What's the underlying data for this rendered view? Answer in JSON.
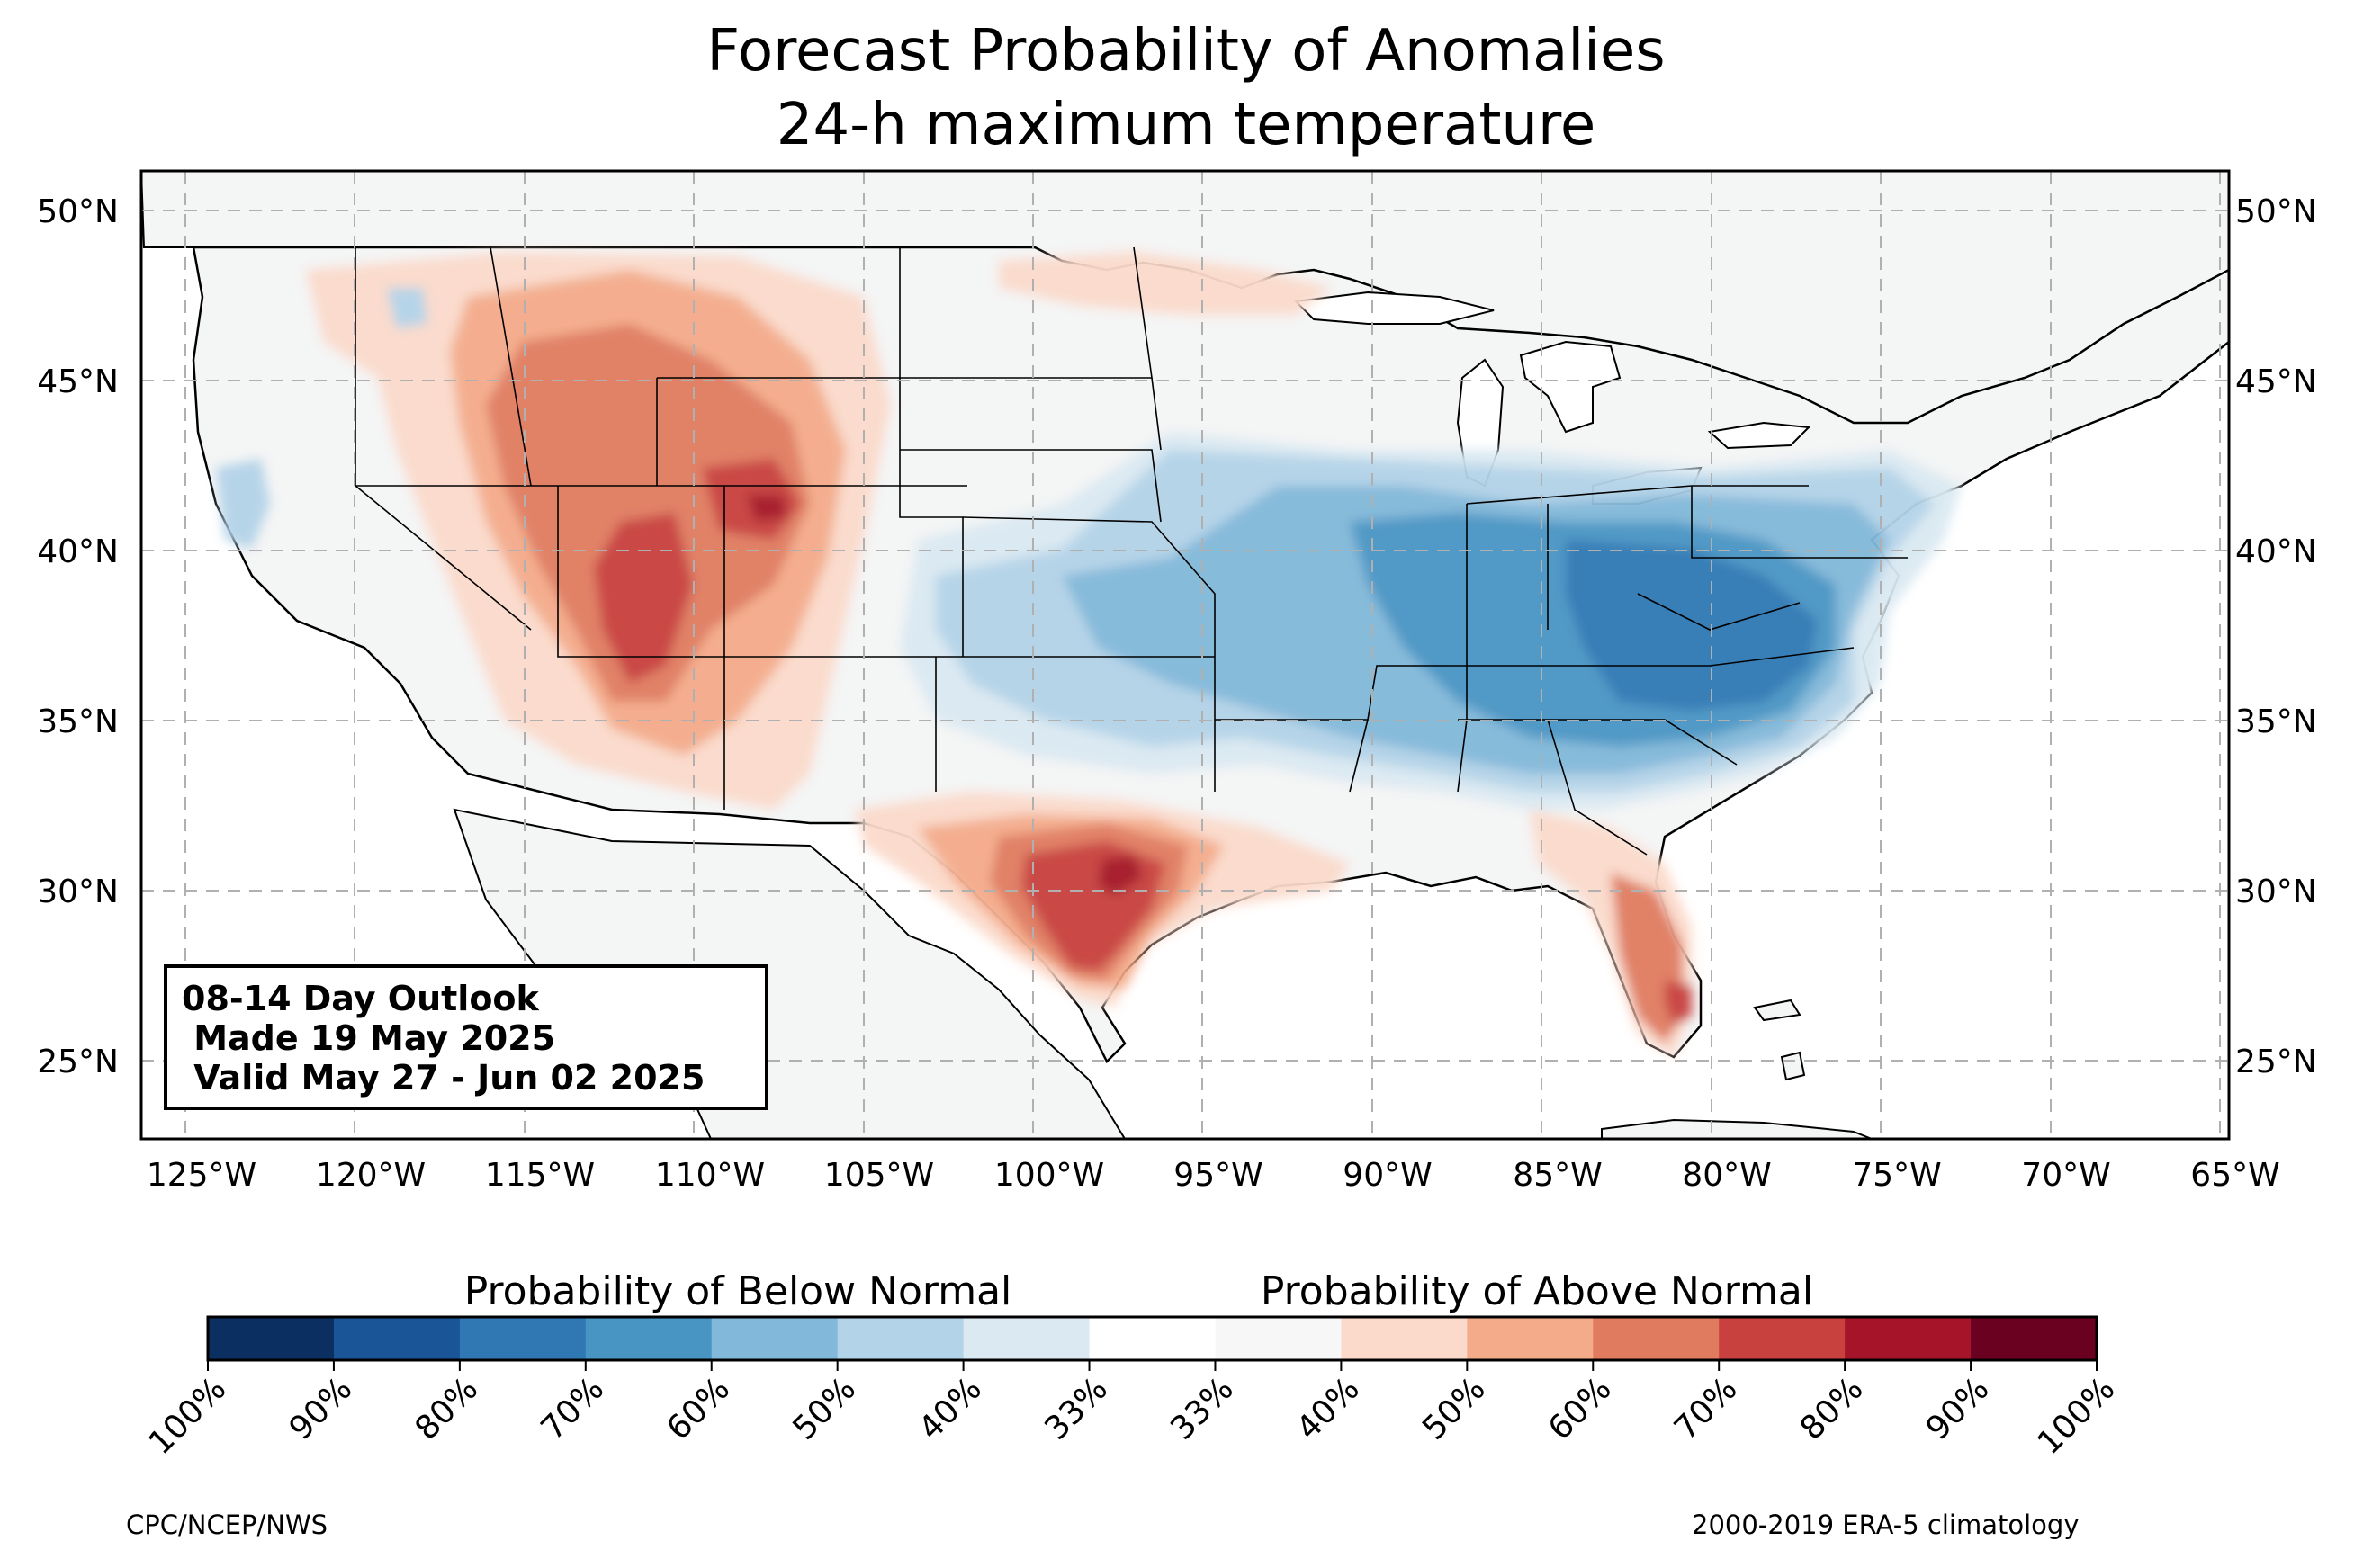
{
  "title": {
    "line1": "Forecast Probability of Anomalies",
    "line2": "24-h maximum temperature"
  },
  "map": {
    "region": "Contiguous United States",
    "lon_ticks": [
      "125°W",
      "120°W",
      "115°W",
      "110°W",
      "105°W",
      "100°W",
      "95°W",
      "90°W",
      "85°W",
      "80°W",
      "75°W",
      "70°W",
      "65°W"
    ],
    "lat_ticks": [
      "50°N",
      "45°N",
      "40°N",
      "35°N",
      "30°N",
      "25°N"
    ],
    "gridlines": true,
    "land_color": "#f4f5f5",
    "water_color": "#ffffff",
    "anomalies": [
      {
        "category": "above",
        "probability_percent": 50,
        "area": "Great Basin, Idaho, Montana and Wyoming"
      },
      {
        "category": "above",
        "probability_percent": 60,
        "area": "Utah, Colorado and Wyoming"
      },
      {
        "category": "above",
        "probability_percent": 70,
        "area": "South-central Wyoming"
      },
      {
        "category": "above",
        "probability_percent": 40,
        "area": "Northern Plains and Upper Midwest border"
      },
      {
        "category": "above",
        "probability_percent": 70,
        "area": "South and central Texas"
      },
      {
        "category": "above",
        "probability_percent": 80,
        "area": "Central Texas"
      },
      {
        "category": "above",
        "probability_percent": 70,
        "area": "South Florida"
      },
      {
        "category": "below",
        "probability_percent": 60,
        "area": "Ohio Valley, Mid-Atlantic and Southeast"
      },
      {
        "category": "below",
        "probability_percent": 50,
        "area": "Central Plains and Mid-Mississippi Valley"
      },
      {
        "category": "below",
        "probability_percent": 40,
        "area": "Southern High Plains and Pacific coast"
      }
    ]
  },
  "outlook_box": {
    "line1": "08-14 Day Outlook",
    "line2": " Made 19 May 2025",
    "line3": " Valid May 27 - Jun 02 2025"
  },
  "colorbar": {
    "below_label": "Probability of Below Normal",
    "above_label": "Probability of Above Normal",
    "tick_labels": [
      "100%",
      "90%",
      "80%",
      "70%",
      "60%",
      "50%",
      "40%",
      "33%",
      "33%",
      "40%",
      "50%",
      "60%",
      "70%",
      "80%",
      "90%",
      "100%"
    ],
    "colors": [
      "#0b2f60",
      "#1a5598",
      "#2f78b4",
      "#4895c4",
      "#82b8d9",
      "#b3d3e8",
      "#dae9f2",
      "#f7f7f7",
      "#fbdacb",
      "#f4ab8a",
      "#e07b60",
      "#c8413e",
      "#a51428",
      "#6b0120"
    ]
  },
  "credits": {
    "left": "CPC/NCEP/NWS",
    "right": "2000-2019 ERA-5 climatology"
  }
}
